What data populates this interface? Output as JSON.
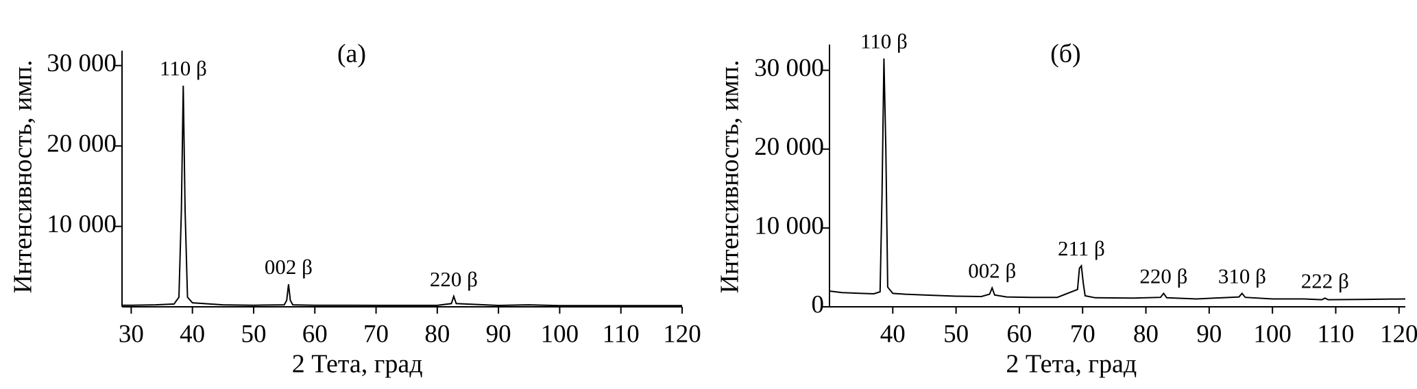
{
  "chart_data": [
    {
      "type": "line",
      "title": "(а)",
      "x_label": "2 Тета, град",
      "y_label": "Интенсивность, имп.",
      "xlim": [
        28.5,
        120
      ],
      "ylim": [
        0,
        31000
      ],
      "xticks": [
        30,
        40,
        50,
        60,
        70,
        80,
        90,
        100,
        110,
        120
      ],
      "yticks": [
        {
          "value": 10000,
          "label": "10 000"
        },
        {
          "value": 20000,
          "label": "20 000"
        },
        {
          "value": 30000,
          "label": "30 000"
        }
      ],
      "color": "#000000",
      "x": [
        28.5,
        30,
        34,
        37,
        37.8,
        38.2,
        38.5,
        38.8,
        39.2,
        40,
        45,
        50,
        55,
        55.4,
        55.7,
        56,
        56.4,
        60,
        70,
        80,
        82.3,
        82.7,
        83.1,
        90,
        95,
        100,
        110,
        120
      ],
      "values": [
        200,
        200,
        250,
        350,
        1200,
        12000,
        27500,
        12000,
        1200,
        500,
        250,
        200,
        250,
        800,
        2800,
        800,
        250,
        200,
        180,
        180,
        400,
        1300,
        400,
        170,
        250,
        150,
        150,
        150
      ],
      "annotations": [
        {
          "text": "110 β",
          "x": 38.5,
          "y": 27500
        },
        {
          "text": "002 β",
          "x": 55.7,
          "y": 2800
        },
        {
          "text": "220 β",
          "x": 82.7,
          "y": 1300
        }
      ]
    },
    {
      "type": "line",
      "title": "(б)",
      "x_label": "2 Тета, град",
      "y_label": "Интенсивность, имп.",
      "xlim": [
        30,
        121
      ],
      "ylim": [
        0,
        32400
      ],
      "xticks": [
        40,
        50,
        60,
        70,
        80,
        90,
        100,
        110,
        120
      ],
      "yticks": [
        0,
        {
          "value": 10000,
          "label": "10 000"
        },
        {
          "value": 20000,
          "label": "20 000"
        },
        {
          "value": 30000,
          "label": "30 000"
        }
      ],
      "color": "#000000",
      "x": [
        30,
        32,
        35,
        37,
        38,
        38.3,
        38.6,
        38.9,
        39.2,
        40,
        42,
        45,
        50,
        54,
        55.3,
        55.7,
        56.1,
        58,
        62,
        66,
        69.2,
        69.5,
        69.8,
        70.1,
        70.4,
        72,
        78,
        82.3,
        82.8,
        83.3,
        88,
        94.7,
        95.2,
        95.7,
        100,
        105,
        107.8,
        108.3,
        108.8,
        115,
        121
      ],
      "values": [
        2000,
        1800,
        1700,
        1650,
        1900,
        14000,
        31500,
        20000,
        2500,
        1700,
        1600,
        1500,
        1350,
        1300,
        1600,
        2400,
        1500,
        1250,
        1200,
        1200,
        2200,
        4900,
        5200,
        3000,
        1400,
        1150,
        1100,
        1200,
        1700,
        1150,
        1000,
        1250,
        1700,
        1200,
        1000,
        1000,
        900,
        1100,
        900,
        950,
        1000
      ],
      "annotations": [
        {
          "text": "110 β",
          "x": 38.6,
          "y": 31500
        },
        {
          "text": "002 β",
          "x": 55.7,
          "y": 2400
        },
        {
          "text": "211 β",
          "x": 69.8,
          "y": 5200
        },
        {
          "text": "220 β",
          "x": 82.8,
          "y": 1700
        },
        {
          "text": "310 β",
          "x": 95.2,
          "y": 1700
        },
        {
          "text": "222 β",
          "x": 108.3,
          "y": 1100
        }
      ]
    }
  ]
}
